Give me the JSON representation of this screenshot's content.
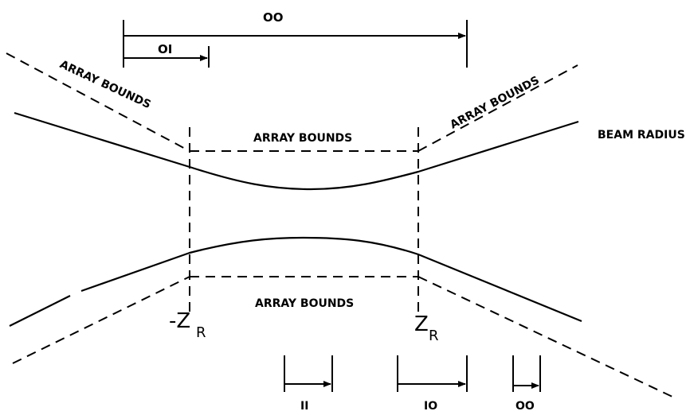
{
  "labels": {
    "array_bounds_top_left": "ARRAY BOUNDS",
    "array_bounds_top_center": "ARRAY BOUNDS",
    "array_bounds_top_right": "ARRAY BOUNDS",
    "array_bounds_bottom_center": "ARRAY BOUNDS",
    "beam_radius": "BEAM RADIUS"
  },
  "dimensions": {
    "top_long": "OO",
    "top_short": "OI",
    "bottom_ii": "II",
    "bottom_io": "IO",
    "bottom_oo": "OO"
  },
  "markers": {
    "neg_zr_prefix": "-Z",
    "pos_zr_prefix": "Z",
    "subscript": "R"
  }
}
